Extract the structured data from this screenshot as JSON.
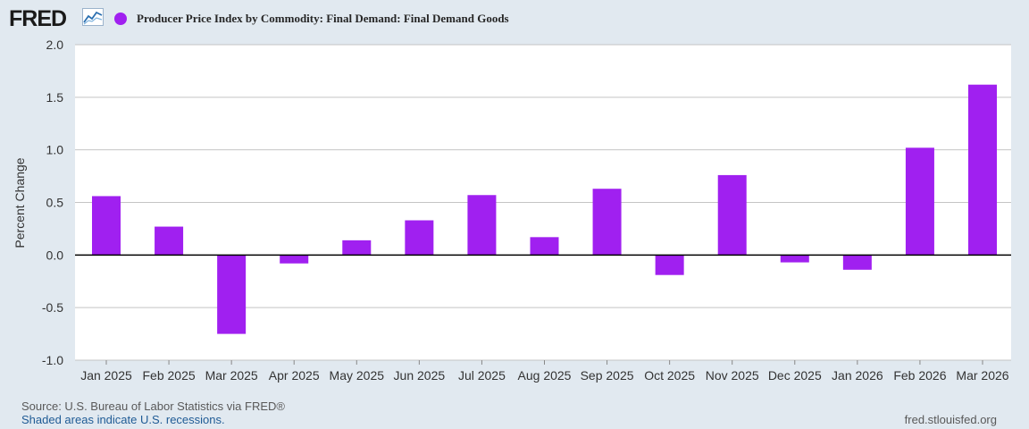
{
  "header": {
    "logo": "FRED",
    "series_color": "#a020f0"
  },
  "chart_data": {
    "type": "bar",
    "title": "Producer Price Index by Commodity: Final Demand: Final Demand Goods",
    "xlabel": "",
    "ylabel": "Percent Change",
    "ylim": [
      -1.0,
      2.0
    ],
    "yticks": [
      "2.0",
      "1.5",
      "1.0",
      "0.5",
      "0.0",
      "-0.5",
      "-1.0"
    ],
    "ytick_values": [
      2.0,
      1.5,
      1.0,
      0.5,
      0.0,
      -0.5,
      -1.0
    ],
    "categories": [
      "Jan 2025",
      "Feb 2025",
      "Mar 2025",
      "Apr 2025",
      "May 2025",
      "Jun 2025",
      "Jul 2025",
      "Aug 2025",
      "Sep 2025",
      "Oct 2025",
      "Nov 2025",
      "Dec 2025",
      "Jan 2026",
      "Feb 2026",
      "Mar 2026"
    ],
    "values": [
      0.56,
      0.27,
      -0.75,
      -0.08,
      0.14,
      0.33,
      0.57,
      0.17,
      0.63,
      -0.19,
      0.76,
      -0.07,
      -0.14,
      1.02,
      1.62
    ],
    "grid": true,
    "color": "#a020f0"
  },
  "footer": {
    "source": "Source: U.S. Bureau of Labor Statistics via FRED®",
    "recessions": "Shaded areas indicate U.S. recessions.",
    "site": "fred.stlouisfed.org"
  }
}
